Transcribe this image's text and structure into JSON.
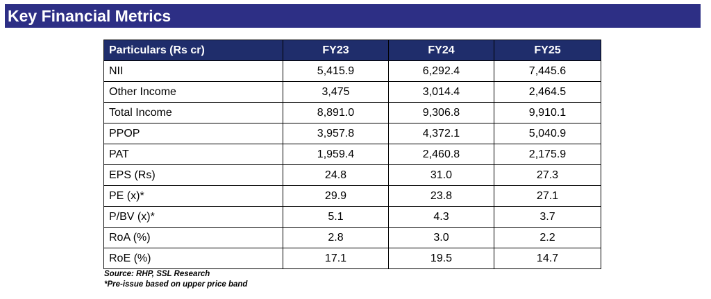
{
  "title": "Key Financial Metrics",
  "table": {
    "headers": [
      "Particulars (Rs cr)",
      "FY23",
      "FY24",
      "FY25"
    ],
    "rows": [
      [
        "NII",
        "5,415.9",
        "6,292.4",
        "7,445.6"
      ],
      [
        "Other Income",
        "3,475",
        "3,014.4",
        "2,464.5"
      ],
      [
        "Total Income",
        "8,891.0",
        "9,306.8",
        "9,910.1"
      ],
      [
        "PPOP",
        "3,957.8",
        "4,372.1",
        "5,040.9"
      ],
      [
        "PAT",
        "1,959.4",
        "2,460.8",
        "2,175.9"
      ],
      [
        "EPS (Rs)",
        "24.8",
        "31.0",
        "27.3"
      ],
      [
        "PE (x)*",
        "29.9",
        "23.8",
        "27.1"
      ],
      [
        "P/BV (x)*",
        "5.1",
        "4.3",
        "3.7"
      ],
      [
        "RoA (%)",
        "2.8",
        "3.0",
        "2.2"
      ],
      [
        "RoE (%)",
        "17.1",
        "19.5",
        "14.7"
      ]
    ]
  },
  "source": "Source: RHP, SSL Research",
  "footnote": "*Pre-issue based on upper price band",
  "colors": {
    "banner_bg": "#2d2f85",
    "header_bg": "#1f2d6b",
    "header_text": "#ffffff"
  }
}
